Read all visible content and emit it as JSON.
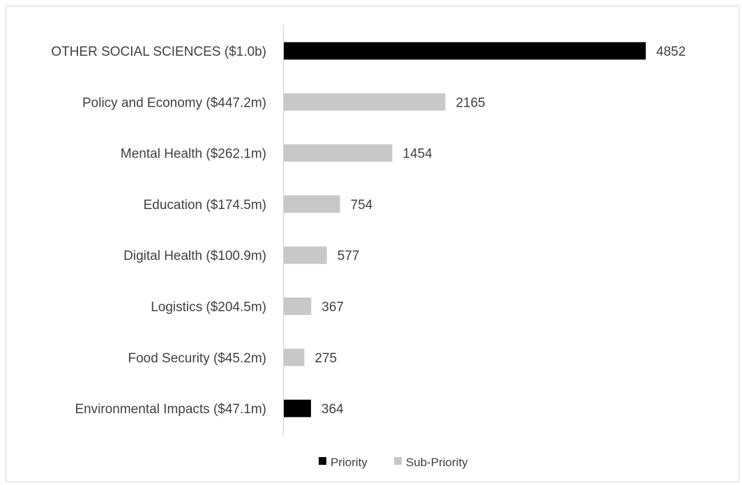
{
  "chart_data": {
    "type": "bar",
    "orientation": "horizontal",
    "categories": [
      "OTHER SOCIAL SCIENCES ($1.0b)",
      "Policy and Economy ($447.2m)",
      "Mental Health ($262.1m)",
      "Education ($174.5m)",
      "Digital Health ($100.9m)",
      "Logistics ($204.5m)",
      "Food Security ($45.2m)",
      "Environmental Impacts ($47.1m)"
    ],
    "values": [
      4852,
      2165,
      1454,
      754,
      577,
      367,
      275,
      364
    ],
    "bar_series": [
      "Priority",
      "Sub-Priority",
      "Sub-Priority",
      "Sub-Priority",
      "Sub-Priority",
      "Sub-Priority",
      "Sub-Priority",
      "Priority"
    ],
    "data_labels": [
      "4852",
      "2165",
      "1454",
      "754",
      "577",
      "367",
      "275",
      "364"
    ],
    "series": [
      {
        "name": "Priority",
        "color": "#000000"
      },
      {
        "name": "Sub-Priority",
        "color": "#c8c8c8"
      }
    ],
    "xlim": [
      0,
      5200
    ],
    "grid": false,
    "legend_position": "bottom"
  }
}
